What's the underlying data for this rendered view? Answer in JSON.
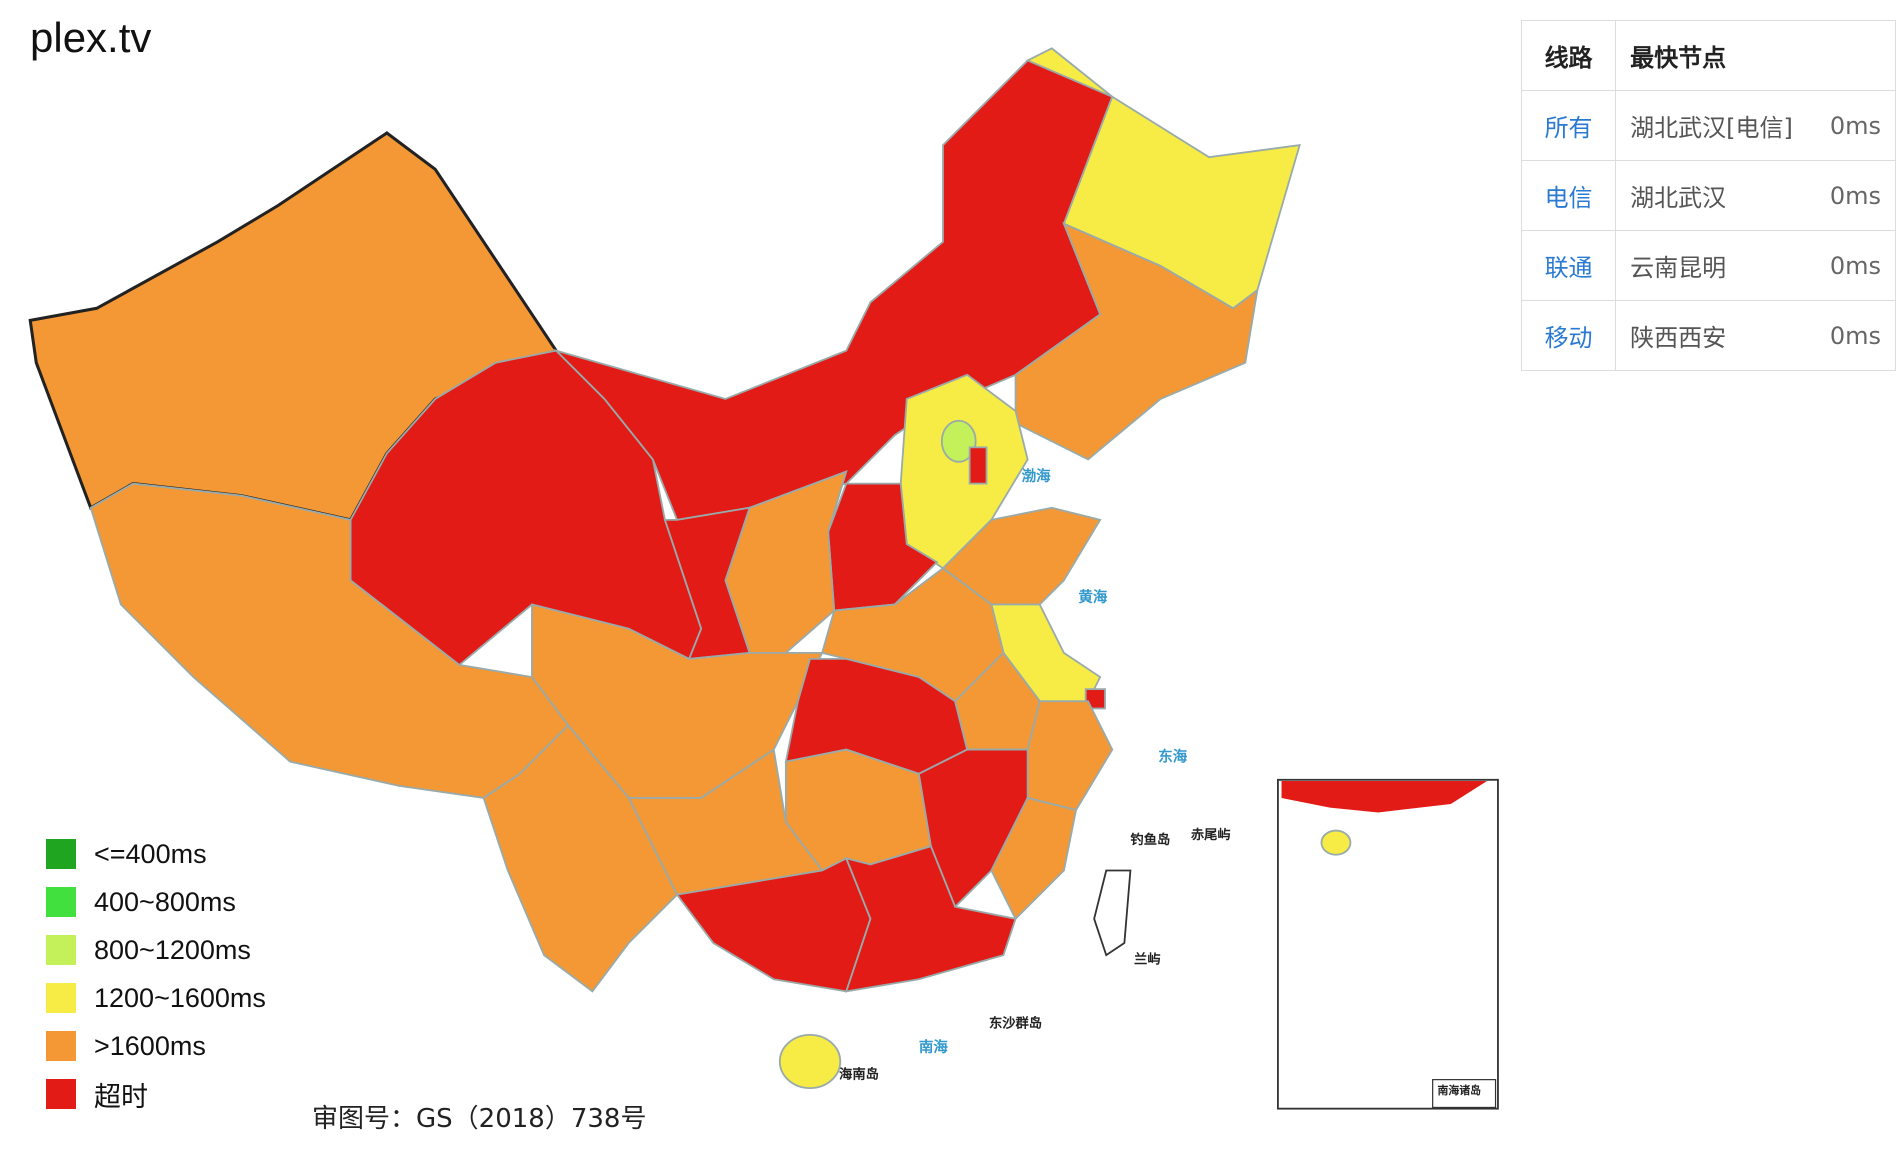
{
  "title": "plex.tv",
  "legend": [
    {
      "label": "<=400ms",
      "color": "#1fa51f"
    },
    {
      "label": "400~800ms",
      "color": "#42e03f"
    },
    {
      "label": "800~1200ms",
      "color": "#c4f05a"
    },
    {
      "label": "1200~1600ms",
      "color": "#f6ec45"
    },
    {
      "label": ">1600ms",
      "color": "#f39835"
    },
    {
      "label": "超时",
      "color": "#e31b17"
    }
  ],
  "table": {
    "headers": [
      "线路",
      "最快节点"
    ],
    "rows": [
      [
        "所有",
        "湖北武汉[电信]",
        "0ms"
      ],
      [
        "电信",
        "湖北武汉",
        "0ms"
      ],
      [
        "联通",
        "云南昆明",
        "0ms"
      ],
      [
        "移动",
        "陕西西安",
        "0ms"
      ]
    ]
  },
  "caption": "审图号：GS（2018）738号",
  "map_labels": [
    "渤海",
    "黄海",
    "东海",
    "南海",
    "钓鱼岛",
    "赤尾屿",
    "兰屿",
    "东沙群岛",
    "海南岛",
    "南海诸岛"
  ]
}
